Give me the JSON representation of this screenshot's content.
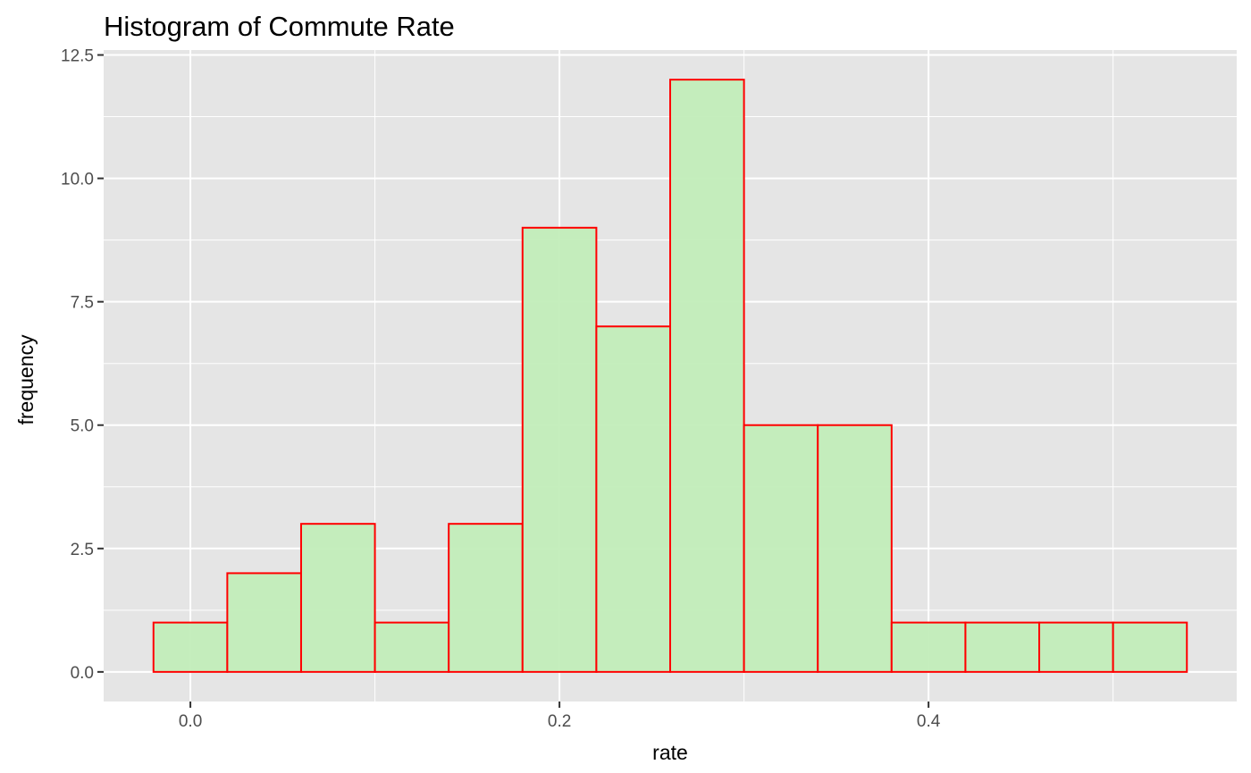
{
  "chart_data": {
    "type": "bar",
    "title": "Histogram of Commute Rate",
    "xlabel": "rate",
    "ylabel": "frequency",
    "bin_width": 0.04,
    "bins": [
      {
        "x0": -0.02,
        "x1": 0.02,
        "count": 1
      },
      {
        "x0": 0.02,
        "x1": 0.06,
        "count": 2
      },
      {
        "x0": 0.06,
        "x1": 0.1,
        "count": 3
      },
      {
        "x0": 0.1,
        "x1": 0.14,
        "count": 1
      },
      {
        "x0": 0.14,
        "x1": 0.18,
        "count": 3
      },
      {
        "x0": 0.18,
        "x1": 0.22,
        "count": 9
      },
      {
        "x0": 0.22,
        "x1": 0.26,
        "count": 7
      },
      {
        "x0": 0.26,
        "x1": 0.3,
        "count": 12
      },
      {
        "x0": 0.3,
        "x1": 0.34,
        "count": 5
      },
      {
        "x0": 0.34,
        "x1": 0.38,
        "count": 5
      },
      {
        "x0": 0.38,
        "x1": 0.42,
        "count": 1
      },
      {
        "x0": 0.42,
        "x1": 0.46,
        "count": 1
      },
      {
        "x0": 0.46,
        "x1": 0.5,
        "count": 1
      },
      {
        "x0": 0.5,
        "x1": 0.54,
        "count": 1
      }
    ],
    "xlim": [
      -0.047,
      0.567
    ],
    "ylim": [
      -0.6,
      12.6
    ],
    "x_ticks": [
      0.0,
      0.2,
      0.4
    ],
    "x_tick_labels": [
      "0.0",
      "0.2",
      "0.4"
    ],
    "y_ticks": [
      0.0,
      2.5,
      5.0,
      7.5,
      10.0,
      12.5
    ],
    "y_tick_labels": [
      "0.0",
      "2.5",
      "5.0",
      "7.5",
      "10.0",
      "12.5"
    ],
    "grid": true,
    "colors": {
      "panel_background": "#e5e5e5",
      "grid": "#ffffff",
      "bar_fill": "#c2edb9",
      "bar_outline": "#ff0000",
      "tick": "#333333"
    }
  }
}
